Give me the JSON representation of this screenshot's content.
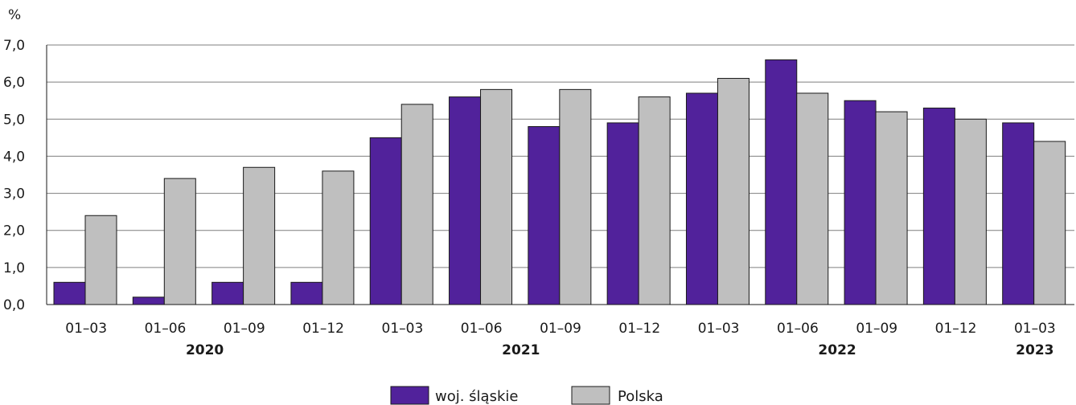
{
  "chart_data": {
    "type": "bar",
    "title": "",
    "ylabel": "%",
    "xlabel": "",
    "ylim": [
      0,
      7
    ],
    "yticks": [
      "0,0",
      "1,0",
      "2,0",
      "3,0",
      "4,0",
      "5,0",
      "6,0",
      "7,0"
    ],
    "grid": true,
    "legend_position": "bottom",
    "categories": [
      "01–03",
      "01–06",
      "01–09",
      "01–12",
      "01–03",
      "01–06",
      "01–09",
      "01–12",
      "01–03",
      "01–06",
      "01–09",
      "01–12",
      "01–03"
    ],
    "year_groups": [
      {
        "label": "2020",
        "start": 0,
        "end": 3
      },
      {
        "label": "2021",
        "start": 4,
        "end": 7
      },
      {
        "label": "2022",
        "start": 8,
        "end": 11
      },
      {
        "label": "2023",
        "start": 12,
        "end": 12
      }
    ],
    "series": [
      {
        "name": "woj. śląskie",
        "color": "#51229b",
        "values": [
          0.6,
          0.2,
          0.6,
          0.6,
          4.5,
          5.6,
          4.8,
          4.9,
          5.7,
          6.6,
          5.5,
          5.3,
          4.9
        ]
      },
      {
        "name": "Polska",
        "color": "#bfbfbf",
        "values": [
          2.4,
          3.4,
          3.7,
          3.6,
          5.4,
          5.8,
          5.8,
          5.6,
          6.1,
          5.7,
          5.2,
          5.0,
          4.4
        ]
      }
    ]
  }
}
